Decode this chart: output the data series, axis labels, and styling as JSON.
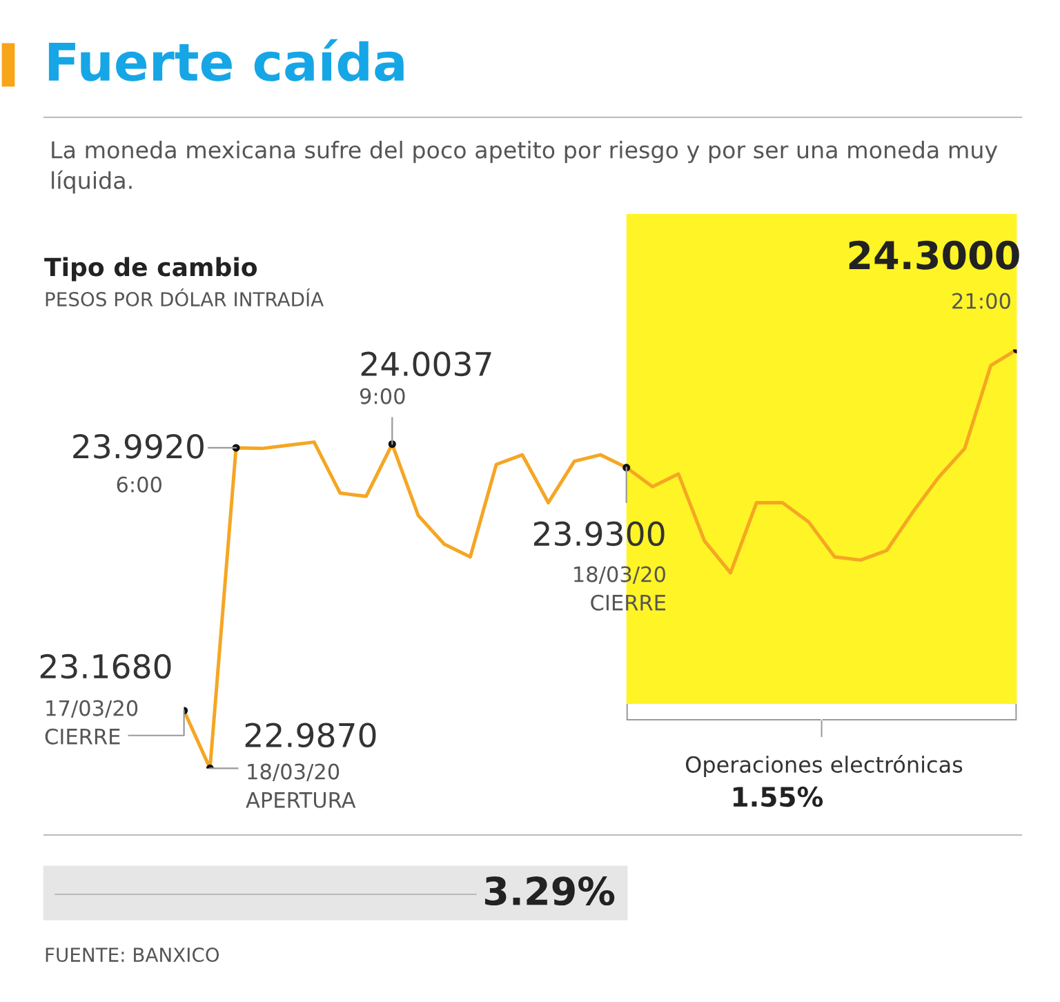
{
  "chart_data": {
    "type": "line",
    "title": "Fuerte caída",
    "subtitle": "La moneda mexicana sufre del poco apetito por riesgo y por ser una moneda muy líquida.",
    "ylabel": "Tipo de cambio",
    "categories": [
      null,
      null,
      null,
      null,
      null,
      null,
      null,
      null,
      null,
      null,
      null,
      null,
      null,
      null,
      null,
      null,
      null,
      null,
      null,
      null,
      null,
      null,
      null,
      null,
      null,
      null,
      null,
      null,
      null,
      null,
      null,
      null,
      null
    ],
    "series": [
      {
        "color": "#f5a623",
        "values": [
          23.168,
          22.987,
          23.992,
          23.99,
          24.0,
          24.01,
          23.85,
          23.84,
          24.0037,
          23.78,
          23.69,
          23.65,
          23.94,
          23.97,
          23.82,
          23.95,
          23.97,
          23.93,
          23.87,
          23.91,
          23.7,
          23.6,
          23.82,
          23.82,
          23.76,
          23.65,
          23.64,
          23.67,
          23.79,
          23.9,
          23.99,
          24.25,
          24.3
        ],
        "value_labels": [
          "23.1680",
          "22.9870",
          "23.9920",
          null,
          null,
          null,
          null,
          null,
          "24.0037",
          null,
          null,
          null,
          null,
          null,
          null,
          null,
          null,
          "23.9300",
          null,
          null,
          null,
          null,
          null,
          null,
          null,
          null,
          null,
          null,
          null,
          null,
          null,
          null,
          "24.3000"
        ]
      }
    ],
    "annotations": [
      "17/03/20\nCIERRE",
      "18/03/20\nAPERTURA",
      "6:00",
      "9:00",
      "18/03/20\nCIERRE",
      "21:00",
      "PESOS POR DÓLAR INTRADÍA",
      "Operaciones electrónicas",
      "1.55%",
      "3.29%",
      "FUENTE: BANXICO"
    ],
    "grid": false,
    "legend": false,
    "marker": "none",
    "line_style": "solid"
  }
}
